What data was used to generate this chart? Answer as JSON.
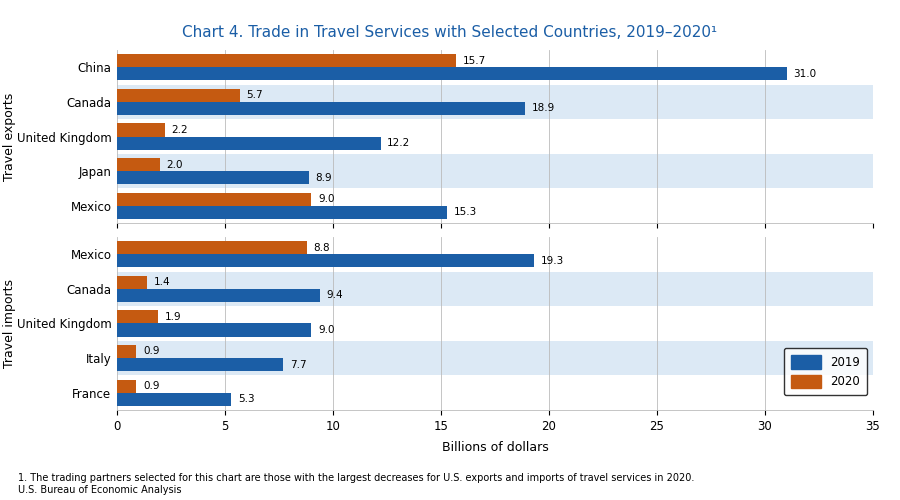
{
  "title": "Chart 4. Trade in Travel Services with Selected Countries, 2019–2020¹",
  "footnote": "1. The trading partners selected for this chart are those with the largest decreases for U.S. exports and imports of travel services in 2020.",
  "source": "U.S. Bureau of Economic Analysis",
  "xlabel": "Billions of dollars",
  "xlim": [
    0,
    35
  ],
  "xticks": [
    0,
    5,
    10,
    15,
    20,
    25,
    30,
    35
  ],
  "color_2019": "#1B5EA6",
  "color_2020": "#C55A11",
  "exports": {
    "label": "Travel exports",
    "countries": [
      "China",
      "Canada",
      "United Kingdom",
      "Japan",
      "Mexico"
    ],
    "values_2019": [
      31.0,
      18.9,
      12.2,
      8.9,
      15.3
    ],
    "values_2020": [
      15.7,
      5.7,
      2.2,
      2.0,
      9.0
    ],
    "shaded": [
      1,
      3
    ]
  },
  "imports": {
    "label": "Travel imports",
    "countries": [
      "Mexico",
      "Canada",
      "United Kingdom",
      "Italy",
      "France"
    ],
    "values_2019": [
      19.3,
      9.4,
      9.0,
      7.7,
      5.3
    ],
    "values_2020": [
      8.8,
      1.4,
      1.9,
      0.9,
      0.9
    ],
    "shaded": [
      1,
      3
    ]
  },
  "bg_shaded": "#DCE9F5",
  "bg_white": "#FFFFFF"
}
